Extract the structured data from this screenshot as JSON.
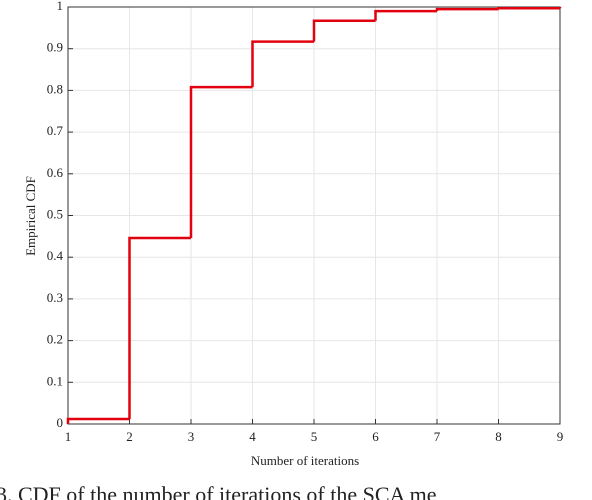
{
  "chart_data": {
    "type": "step",
    "x_label": "Number of iterations",
    "y_label": "Empirical CDF",
    "caption": "3. CDF of the number of iterations of the SCA me",
    "x": [
      1,
      2,
      3,
      4,
      5,
      6,
      7,
      8,
      9
    ],
    "series": [
      {
        "color": "#e3000f",
        "values": [
          0.012,
          0.446,
          0.808,
          0.917,
          0.967,
          0.99,
          0.995,
          0.997,
          1
        ]
      }
    ],
    "xlim": [
      1,
      9
    ],
    "xticks": [
      1,
      2,
      3,
      4,
      5,
      6,
      7,
      8,
      9
    ],
    "ylim": [
      0,
      1
    ],
    "yticks": [
      0,
      0.1,
      0.2,
      0.3,
      0.4,
      0.5,
      0.6,
      0.7,
      0.8,
      0.9,
      1
    ],
    "grid": true
  }
}
